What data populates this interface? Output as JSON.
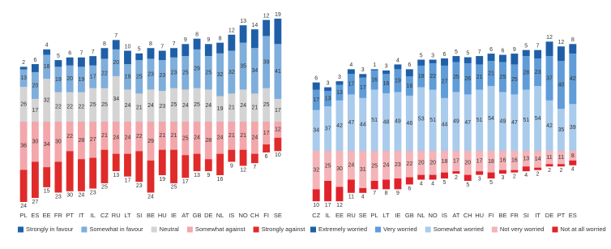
{
  "chart_data": [
    {
      "type": "bar",
      "stacked": true,
      "categories": [
        "PL",
        "ES",
        "EE",
        "FR",
        "PT",
        "IT",
        "IL",
        "CZ",
        "RU",
        "LT",
        "SI",
        "BE",
        "HU",
        "IE",
        "AT",
        "GB",
        "DE",
        "NL",
        "IS",
        "NO",
        "CH",
        "FI",
        "SE"
      ],
      "series": [
        {
          "name": "Strongly in favour",
          "color": "#1f5fa8",
          "values": [
            2,
            6,
            4,
            5,
            6,
            7,
            7,
            8,
            7,
            10,
            5,
            8,
            7,
            7,
            9,
            8,
            9,
            8,
            12,
            13,
            14,
            12,
            19
          ]
        },
        {
          "name": "Somewhat in favour",
          "color": "#7eaedb",
          "values": [
            13,
            20,
            18,
            19,
            20,
            19,
            17,
            22,
            20,
            19,
            25,
            23,
            23,
            23,
            25,
            29,
            25,
            32,
            32,
            35,
            34,
            39,
            41
          ]
        },
        {
          "name": "Neutral",
          "color": "#d4d4d4",
          "values": [
            26,
            17,
            32,
            22,
            22,
            22,
            25,
            25,
            34,
            24,
            21,
            24,
            23,
            25,
            24,
            25,
            24,
            19,
            21,
            24,
            21,
            25,
            17
          ]
        },
        {
          "name": "Somewhat against",
          "color": "#f3a7ab",
          "values": [
            36,
            30,
            34,
            30,
            22,
            28,
            27,
            21,
            24,
            24,
            22,
            29,
            21,
            21,
            25,
            24,
            28,
            24,
            21,
            21,
            24,
            17,
            12
          ]
        },
        {
          "name": "Strongly against",
          "color": "#e02b2b",
          "values": [
            24,
            27,
            15,
            23,
            30,
            24,
            23,
            25,
            13,
            17,
            23,
            24,
            19,
            25,
            17,
            13,
            9,
            16,
            9,
            12,
            7,
            6,
            10
          ]
        }
      ]
    },
    {
      "type": "bar",
      "stacked": true,
      "categories": [
        "CZ",
        "IL",
        "EE",
        "RU",
        "SE",
        "PL",
        "LT",
        "IE",
        "GB",
        "NL",
        "NO",
        "IS",
        "AT",
        "CH",
        "HU",
        "FI",
        "BE",
        "FR",
        "SI",
        "IT",
        "DE",
        "PT",
        "ES"
      ],
      "series": [
        {
          "name": "Extremely worried",
          "color": "#1f5fa8",
          "values": [
            6,
            3,
            3,
            4,
            3,
            1,
            3,
            4,
            6,
            5,
            3,
            6,
            5,
            5,
            7,
            6,
            6,
            9,
            5,
            7,
            12,
            12,
            8
          ]
        },
        {
          "name": "Very worried",
          "color": "#5f9cd8",
          "values": [
            17,
            13,
            13,
            17,
            17,
            16,
            16,
            19,
            16,
            18,
            22,
            27,
            25,
            26,
            21,
            21,
            25,
            25,
            28,
            23,
            37,
            40,
            42
          ]
        },
        {
          "name": "Somewhat worried",
          "color": "#a9cbec",
          "values": [
            34,
            37,
            42,
            47,
            44,
            51,
            48,
            49,
            46,
            53,
            51,
            44,
            49,
            47,
            51,
            54,
            49,
            47,
            51,
            54,
            42,
            35,
            39
          ]
        },
        {
          "name": "Not very worried",
          "color": "#f4b4b8",
          "values": [
            32,
            25,
            30,
            24,
            31,
            25,
            24,
            23,
            22,
            20,
            20,
            18,
            17,
            20,
            17,
            18,
            16,
            16,
            13,
            14,
            11,
            11,
            8
          ]
        },
        {
          "name": "Not at all worried",
          "color": "#e0222a",
          "values": [
            10,
            17,
            12,
            11,
            4,
            7,
            8,
            9,
            6,
            4,
            4,
            5,
            2,
            5,
            3,
            5,
            3,
            2,
            4,
            2,
            2,
            2,
            4
          ]
        }
      ]
    }
  ]
}
